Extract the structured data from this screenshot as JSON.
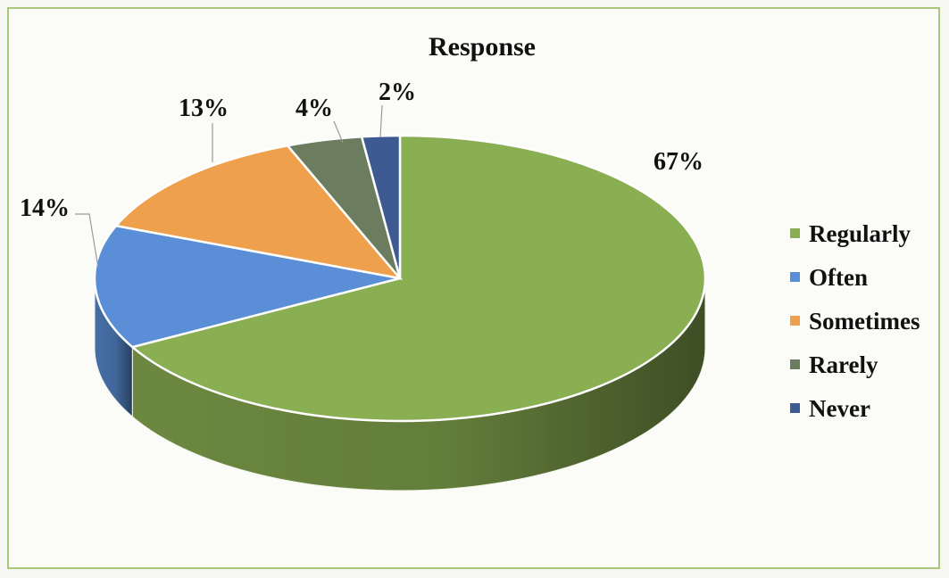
{
  "chart_data": {
    "type": "pie",
    "title": "Response",
    "categories": [
      "Regularly",
      "Often",
      "Sometimes",
      "Rarely",
      "Never"
    ],
    "values": [
      67,
      14,
      13,
      4,
      2
    ],
    "data_labels": [
      "67%",
      "14%",
      "13%",
      "4%",
      "2%"
    ],
    "colors": [
      "#8aae52",
      "#5a8ed6",
      "#eea04c",
      "#6b7d5e",
      "#3e5a92"
    ],
    "legend_position": "right",
    "style": "3d"
  }
}
